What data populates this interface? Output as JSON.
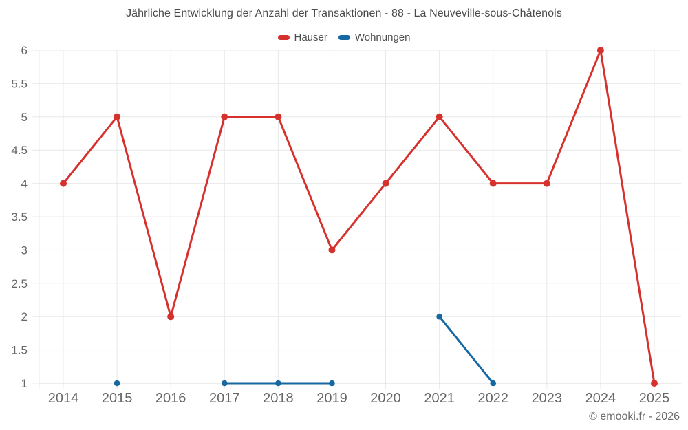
{
  "chart_data": {
    "type": "line",
    "title": "Jährliche Entwicklung der Anzahl der Transaktionen - 88 - La Neuveville-sous-Châtenois",
    "x": [
      "2014",
      "2015",
      "2016",
      "2017",
      "2018",
      "2019",
      "2020",
      "2021",
      "2022",
      "2023",
      "2024",
      "2025"
    ],
    "series": [
      {
        "name": "Häuser",
        "color": "#d7312e",
        "values": [
          4,
          5,
          2,
          5,
          5,
          3,
          4,
          5,
          4,
          4,
          6,
          1
        ],
        "point_radius": 5
      },
      {
        "name": "Wohnungen",
        "color": "#1668a2",
        "values": [
          null,
          1,
          null,
          1,
          1,
          1,
          null,
          2,
          1,
          null,
          null,
          null
        ],
        "point_radius": 4.3
      }
    ],
    "ylim": [
      1,
      6
    ],
    "ytick_step": 0.5,
    "grid": true,
    "legend_position": "top",
    "line_width": 3
  },
  "footer": {
    "text": "© emooki.fr - 2026"
  },
  "theme": {
    "background": "#ffffff",
    "grid_color": "#e8e8e8",
    "axis_color": "#d9d9d9",
    "tick_label_color": "#666666",
    "title_color": "#4a4a4a",
    "legend_text_color": "#4d4d4d",
    "footer_color": "#6b6b6b"
  }
}
